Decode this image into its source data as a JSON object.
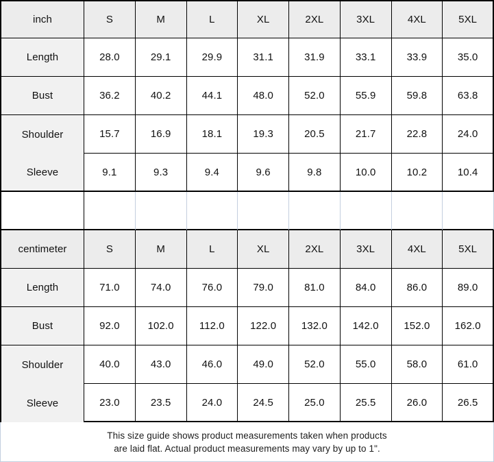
{
  "tables": [
    {
      "unit_label": "inch",
      "sizes": [
        "S",
        "M",
        "L",
        "XL",
        "2XL",
        "3XL",
        "4XL",
        "5XL"
      ],
      "rows": [
        {
          "label": "Length",
          "values": [
            "28.0",
            "29.1",
            "29.9",
            "31.1",
            "31.9",
            "33.1",
            "33.9",
            "35.0"
          ]
        },
        {
          "label": "Bust",
          "values": [
            "36.2",
            "40.2",
            "44.1",
            "48.0",
            "52.0",
            "55.9",
            "59.8",
            "63.8"
          ]
        },
        {
          "label": "Shoulder",
          "values": [
            "15.7",
            "16.9",
            "18.1",
            "19.3",
            "20.5",
            "21.7",
            "22.8",
            "24.0"
          ]
        },
        {
          "label": "Sleeve",
          "values": [
            "9.1",
            "9.3",
            "9.4",
            "9.6",
            "9.8",
            "10.0",
            "10.2",
            "10.4"
          ]
        }
      ]
    },
    {
      "unit_label": "centimeter",
      "sizes": [
        "S",
        "M",
        "L",
        "XL",
        "2XL",
        "3XL",
        "4XL",
        "5XL"
      ],
      "rows": [
        {
          "label": "Length",
          "values": [
            "71.0",
            "74.0",
            "76.0",
            "79.0",
            "81.0",
            "84.0",
            "86.0",
            "89.0"
          ]
        },
        {
          "label": "Bust",
          "values": [
            "92.0",
            "102.0",
            "112.0",
            "122.0",
            "132.0",
            "142.0",
            "152.0",
            "162.0"
          ]
        },
        {
          "label": "Shoulder",
          "values": [
            "40.0",
            "43.0",
            "46.0",
            "49.0",
            "52.0",
            "55.0",
            "58.0",
            "61.0"
          ]
        },
        {
          "label": "Sleeve",
          "values": [
            "23.0",
            "23.5",
            "24.0",
            "24.5",
            "25.0",
            "25.5",
            "26.0",
            "26.5"
          ]
        }
      ]
    }
  ],
  "footer": {
    "line1": "This size guide shows product measurements taken when products",
    "line2": "are laid flat. Actual product measurements may vary by up to 1\"."
  },
  "colors": {
    "border_black": "#000000",
    "gridline_blue": "#c3cede",
    "header_bg": "#ececec",
    "label_bg": "#f1f1f1"
  }
}
